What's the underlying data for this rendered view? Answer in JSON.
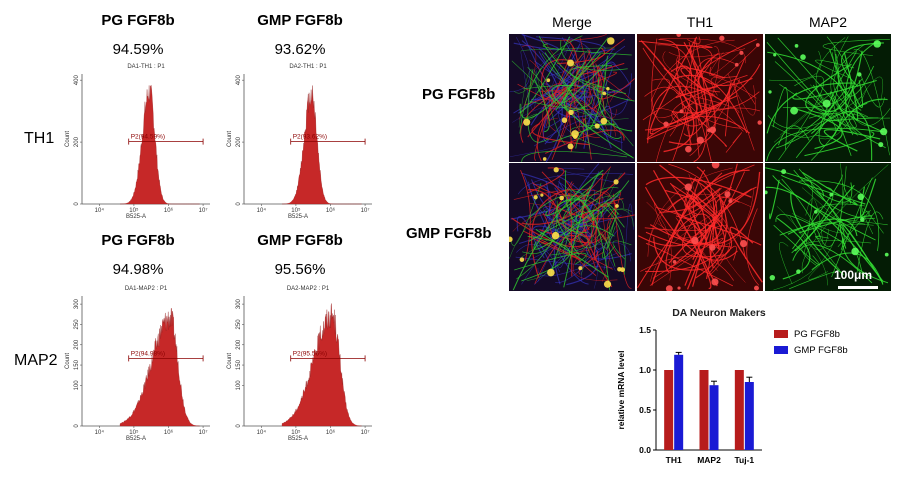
{
  "flow": {
    "columns": [
      "PG FGF8b",
      "GMP FGF8b"
    ],
    "rows": [
      {
        "label": "TH1",
        "cells": [
          {
            "header": "PG FGF8b",
            "percent": "94.59%",
            "subtitle": "DA1-TH1 : P1",
            "gate_label": "P2(94.59%)",
            "peak_x": 5.45,
            "peak_count": 390,
            "spread": 0.16
          },
          {
            "header": "GMP FGF8b",
            "percent": "93.62%",
            "subtitle": "DA2-TH1 : P1",
            "gate_label": "P2(93.62%)",
            "peak_x": 5.45,
            "peak_count": 385,
            "spread": 0.16
          }
        ],
        "y_ticks": [
          "0",
          "200",
          "400"
        ],
        "y_max": 420
      },
      {
        "label": "MAP2",
        "cells": [
          {
            "header": "PG FGF8b",
            "percent": "94.98%",
            "subtitle": "DA1-MAP2 : P1",
            "gate_label": "P2(94.98%)",
            "peak_x": 6.05,
            "peak_count": 285,
            "spread": 0.22
          },
          {
            "header": "GMP FGF8b",
            "percent": "95.56%",
            "subtitle": "DA2-MAP2 : P1",
            "gate_label": "P2(95.56%)",
            "peak_x": 6.05,
            "peak_count": 295,
            "spread": 0.22
          }
        ],
        "y_ticks": [
          "0",
          "100",
          "150",
          "200",
          "250",
          "300"
        ],
        "y_max": 320
      }
    ],
    "x_label": "B525-A",
    "y_label": "Count",
    "x_ticks": [
      "10⁴",
      "10⁵",
      "10⁶",
      "10⁷"
    ],
    "colors": {
      "fill": "#c62828",
      "gate": "#8b0000"
    }
  },
  "micro": {
    "columns": [
      "Merge",
      "TH1",
      "MAP2"
    ],
    "rows": [
      "PG FGF8b",
      "GMP FGF8b"
    ],
    "scale_bar": "100μm"
  },
  "chart_data": {
    "type": "bar",
    "title": "DA Neuron Makers",
    "categories": [
      "TH1",
      "MAP2",
      "Tuj-1"
    ],
    "series": [
      {
        "name": "PG FGF8b",
        "values": [
          1.0,
          1.0,
          1.0
        ],
        "errors": [
          0,
          0,
          0
        ],
        "color": "#b71c1c"
      },
      {
        "name": "GMP FGF8b",
        "values": [
          1.19,
          0.81,
          0.85
        ],
        "errors": [
          0.03,
          0.05,
          0.06
        ],
        "color": "#1a1ad4"
      }
    ],
    "ylabel": "relative mRNA level",
    "xlabel": "",
    "ylim": [
      0,
      1.5
    ],
    "y_ticks": [
      "0.0",
      "0.5",
      "1.0",
      "1.5"
    ],
    "legend_position": "right"
  }
}
